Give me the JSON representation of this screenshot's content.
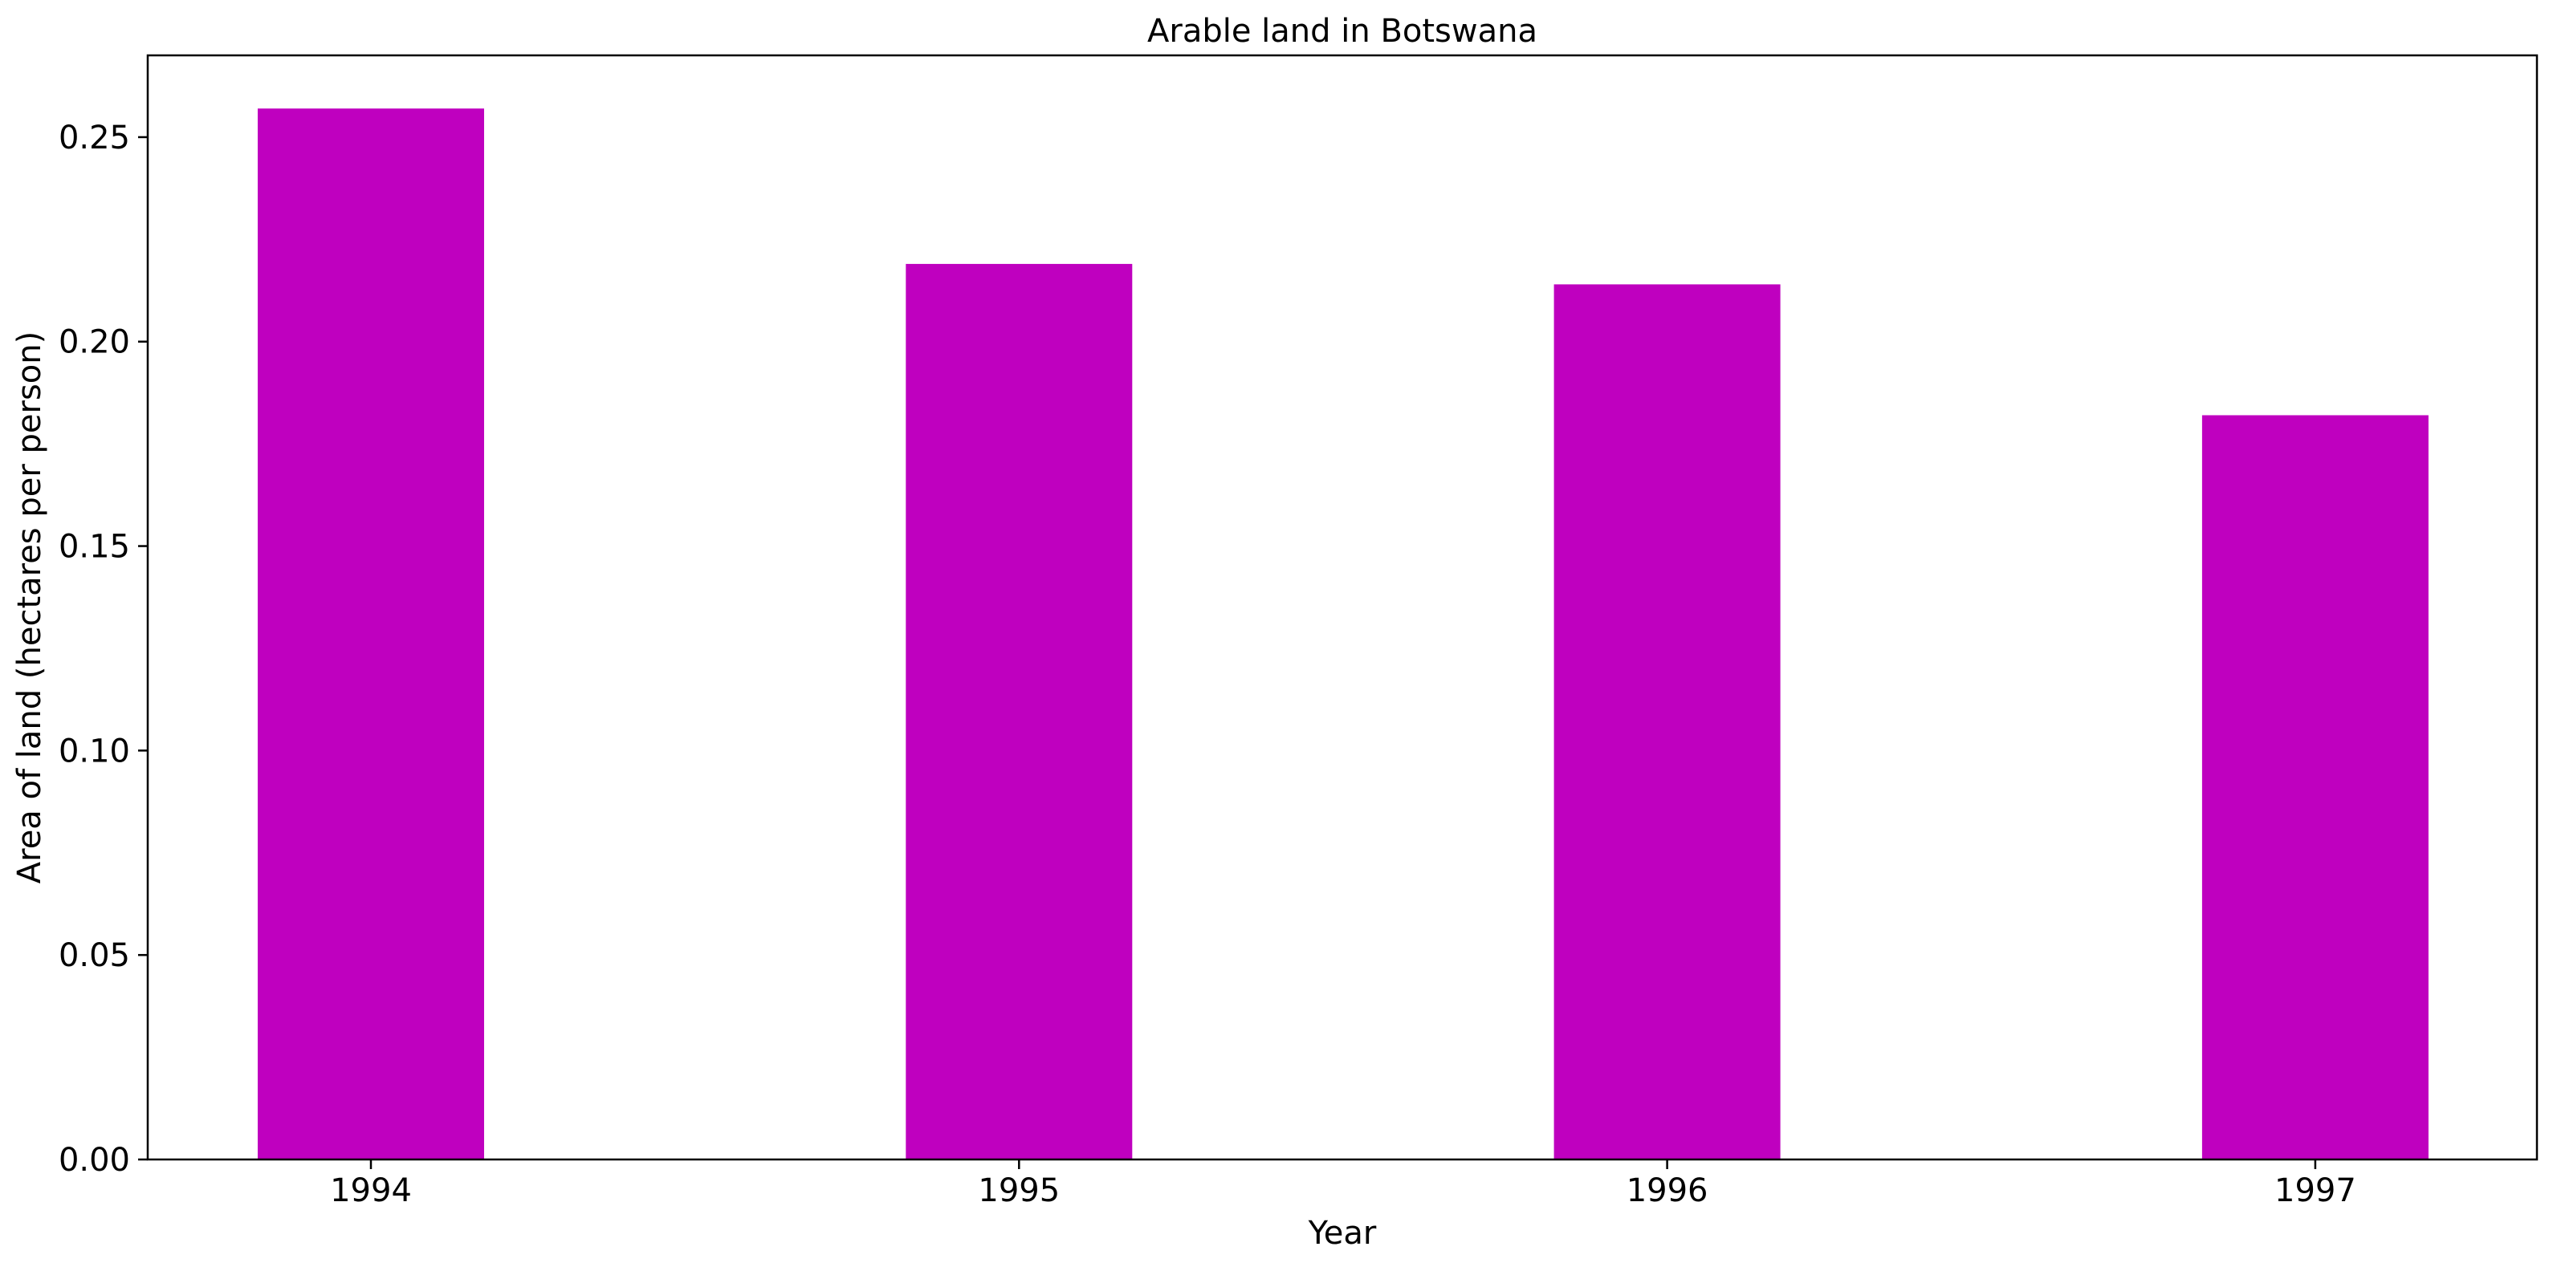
{
  "chart_data": {
    "type": "bar",
    "title": "Arable land in Botswana",
    "xlabel": "Year",
    "ylabel": "Area of land (hectares per person)",
    "categories": [
      "1994",
      "1995",
      "1996",
      "1997"
    ],
    "values": [
      0.257,
      0.219,
      0.214,
      0.182
    ],
    "ylim": [
      0,
      0.27
    ],
    "yticks": [
      0.0,
      0.05,
      0.1,
      0.15,
      0.2,
      0.25
    ],
    "ytick_labels": [
      "0.00",
      "0.05",
      "0.10",
      "0.15",
      "0.20",
      "0.25"
    ],
    "bar_color": "#bf00bf",
    "grid": false,
    "legend": "none"
  }
}
